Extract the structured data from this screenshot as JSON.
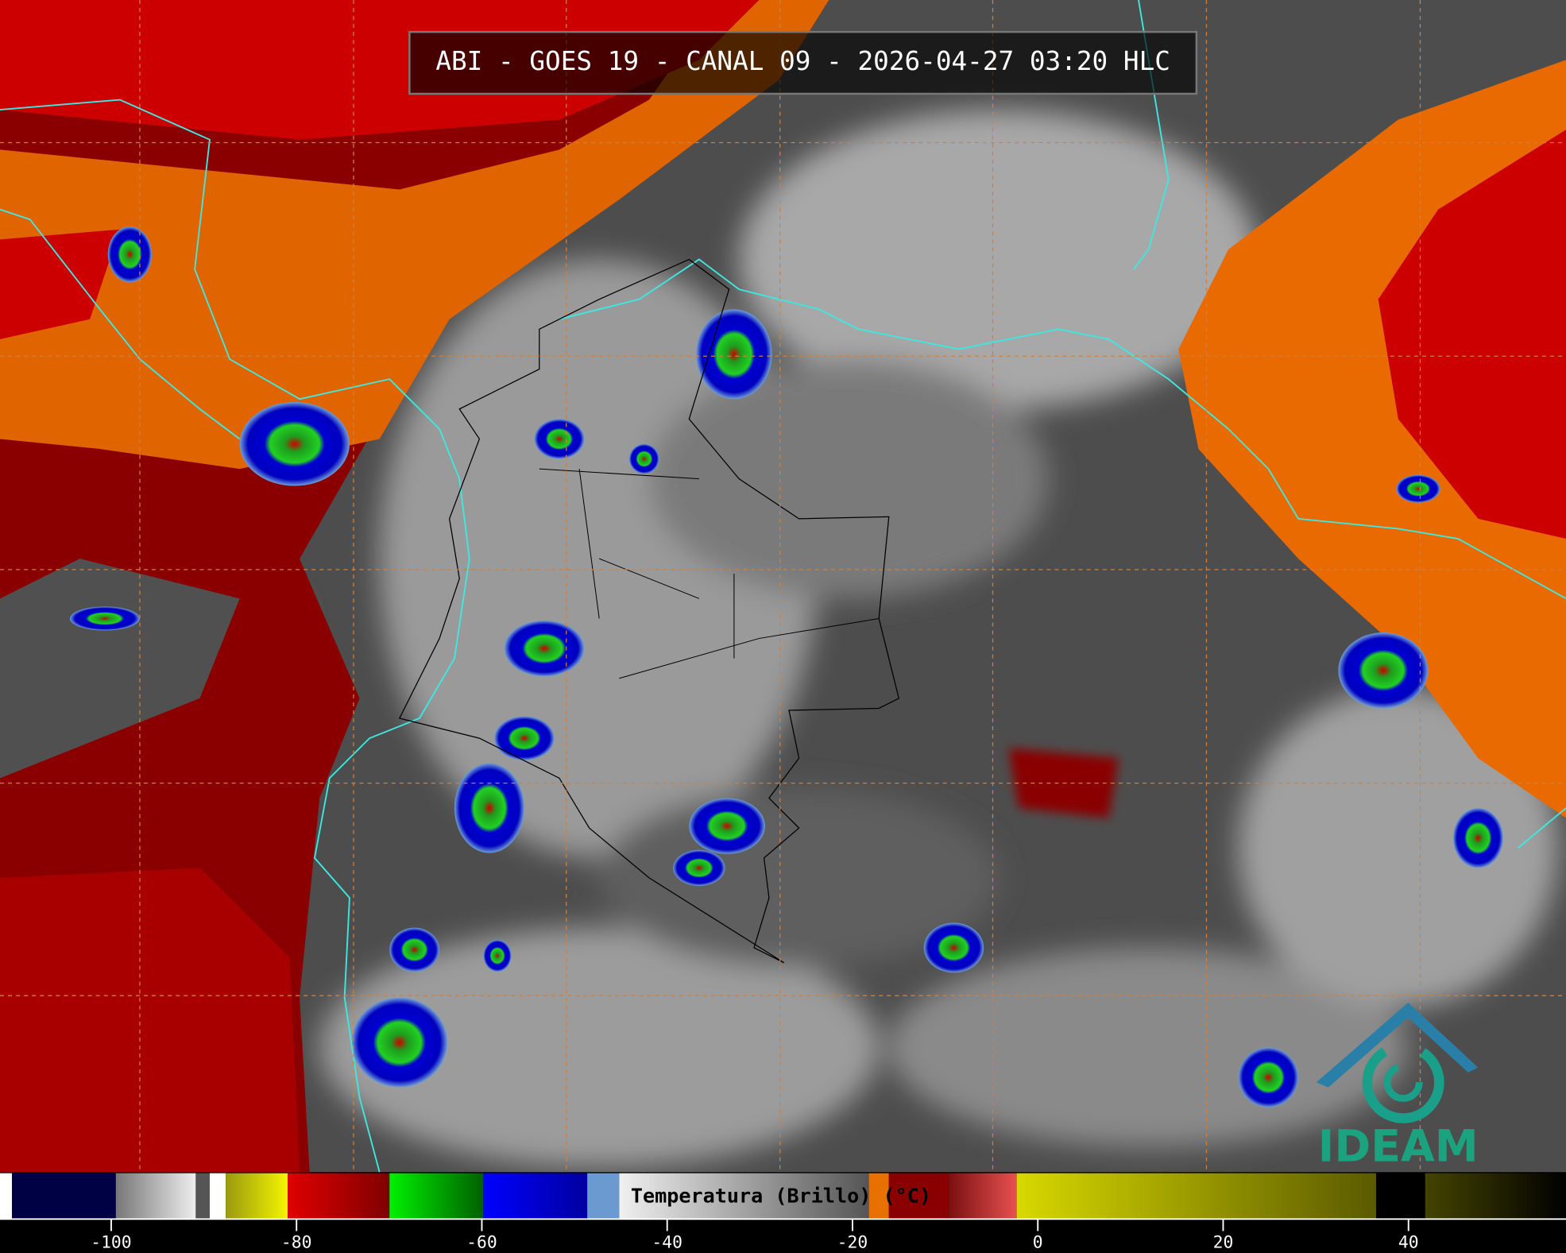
{
  "header": {
    "title": "ABI - GOES 19 - CANAL 09 - 2026-04-27 03:20 HLC"
  },
  "colorbar": {
    "label": "Temperatura (Brillo) (°C)",
    "range": [
      -112,
      57
    ],
    "ticks": [
      -100,
      -80,
      -60,
      -40,
      -20,
      0,
      20,
      40
    ]
  },
  "logo": {
    "text": "IDEAM"
  }
}
